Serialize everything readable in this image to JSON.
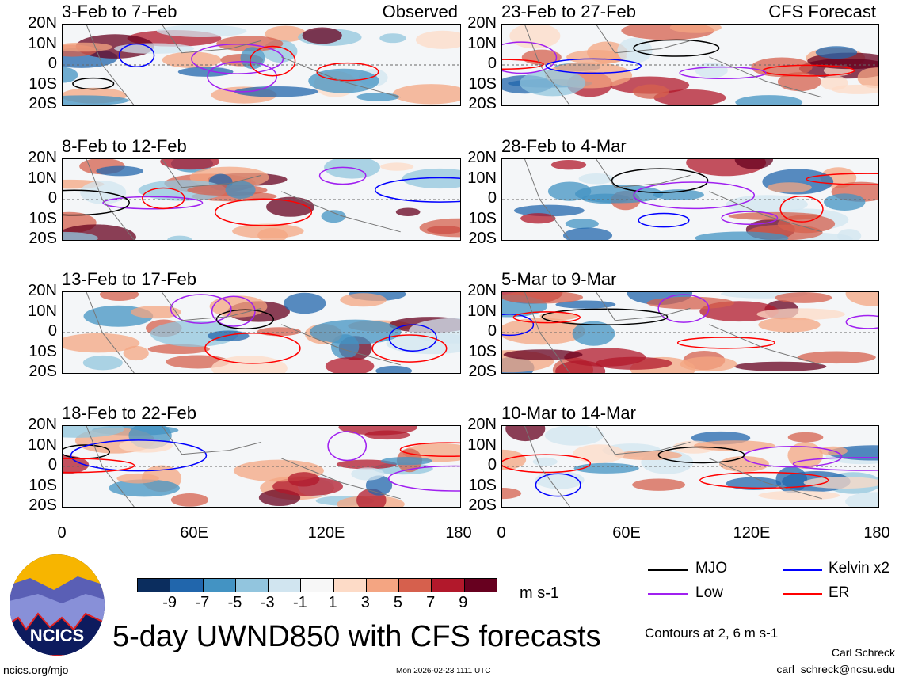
{
  "panels": [
    {
      "title": "3-Feb to 7-Feb",
      "label": "Observed"
    },
    {
      "title": "23-Feb to 27-Feb",
      "label": "CFS Forecast"
    },
    {
      "title": "8-Feb to 12-Feb",
      "label": ""
    },
    {
      "title": "28-Feb to 4-Mar",
      "label": ""
    },
    {
      "title": "13-Feb to 17-Feb",
      "label": ""
    },
    {
      "title": "5-Mar to 9-Mar",
      "label": ""
    },
    {
      "title": "18-Feb to 22-Feb",
      "label": ""
    },
    {
      "title": "10-Mar to 14-Mar",
      "label": ""
    }
  ],
  "lat_labels": [
    "20N",
    "10N",
    "0",
    "10S",
    "20S"
  ],
  "lon_labels": [
    "0",
    "60E",
    "120E",
    "180"
  ],
  "colorbar": {
    "colors": [
      "#0b2d5e",
      "#2166ac",
      "#4393c3",
      "#92c5de",
      "#d1e5f0",
      "#f7f7f7",
      "#fddbc7",
      "#f4a582",
      "#d6604d",
      "#b2182b",
      "#67001f"
    ],
    "labels": [
      "-9",
      "-7",
      "-5",
      "-3",
      "-1",
      "1",
      "3",
      "5",
      "7",
      "9"
    ],
    "units": "m s-1"
  },
  "legend": [
    {
      "label": "MJO",
      "color": "#000000"
    },
    {
      "label": "Kelvin x2",
      "color": "#0000ff"
    },
    {
      "label": "Low",
      "color": "#a020f0"
    },
    {
      "label": "ER",
      "color": "#ff0000"
    }
  ],
  "contours_note": "Contours at 2, 6 m s-1",
  "title": "5-day UWND850 with CFS forecasts",
  "logo_text": "NCICS",
  "footer": {
    "url": "ncics.org/mjo",
    "timestamp": "Mon 2026-02-23 1111 UTC",
    "author": "Carl Schreck",
    "email": "carl_schreck@ncsu.edu"
  }
}
